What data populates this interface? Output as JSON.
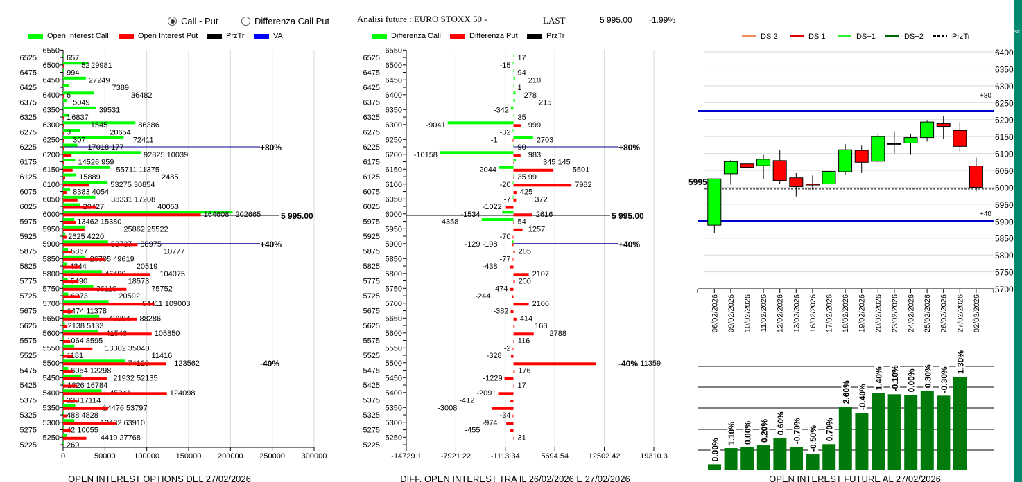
{
  "header": {
    "radio_options": [
      {
        "label": "Call - Put",
        "selected": true
      },
      {
        "label": "Differenza Call Put",
        "selected": false
      }
    ],
    "title": "Analisi future : EURO STOXX 50 -",
    "last_label": "LAST",
    "last_value": "5 995.00",
    "change": "-1.99%",
    "side_tab": "sc"
  },
  "colors": {
    "call": "#00ff00",
    "put": "#ff0000",
    "prztr": "#000000",
    "va": "#0000ff",
    "future_bar": "#007a0a",
    "teal": "#00896f"
  },
  "oi_chart": {
    "title": "OPEN INTEREST OPTIONS DEL 27/02/2026",
    "legend": [
      {
        "label": "Open Interest Call",
        "color": "#00ff00"
      },
      {
        "label": "Open Interest Put",
        "color": "#ff0000"
      },
      {
        "label": "PrzTr",
        "color": "#000000"
      },
      {
        "label": "VA",
        "color": "#0000ff"
      }
    ],
    "x_ticks": [
      "0",
      "50000",
      "100000",
      "150000",
      "200000",
      "250000",
      "300000"
    ],
    "markers": {
      "plus80": "+80%",
      "plus40": "+40%",
      "minus40": "-40%",
      "prztr": "5 995.00"
    }
  },
  "diff_chart": {
    "title": "DIFF. OPEN INTEREST TRA IL 26/02/2026 E 27/02/2026",
    "legend": [
      {
        "label": "Differenza Call",
        "color": "#00ff00"
      },
      {
        "label": "Differenza Put",
        "color": "#ff0000"
      },
      {
        "label": "PrzTr",
        "color": "#000000"
      }
    ],
    "x_ticks": [
      "-14729.1",
      "-7921.22",
      "-1113.34",
      "5694.54",
      "12502.42",
      "19310.3"
    ],
    "markers": {
      "plus80": "+80%",
      "plus40": "+40%",
      "minus40": "-40%",
      "prztr": "5 995.00"
    }
  },
  "price_chart": {
    "legend": [
      {
        "label": "DS 2",
        "color": "#f08c5a",
        "dash": false
      },
      {
        "label": "DS 1",
        "color": "#e00000",
        "dash": false
      },
      {
        "label": "DS+1",
        "color": "#33ee33",
        "dash": false
      },
      {
        "label": "DS+2",
        "color": "#006400",
        "dash": false
      },
      {
        "label": "PrzTr",
        "color": "#000000",
        "dash": true
      }
    ],
    "y_ticks": [
      "6400",
      "6350",
      "6300",
      "6250",
      "6200",
      "6150",
      "6100",
      "6050",
      "6000",
      "5950",
      "5900",
      "5850",
      "5800",
      "5750",
      "5700"
    ],
    "markers": {
      "plus80": "+80",
      "plus40": "+40",
      "prztr": "5995"
    }
  },
  "future_chart": {
    "title": "OPEN INTEREST FUTURE AL 27/02/2026"
  },
  "chart_data": [
    {
      "type": "bar",
      "orientation": "horizontal",
      "title": "OPEN INTEREST OPTIONS DEL 27/02/2026",
      "xlim": [
        0,
        300000
      ],
      "grid": true,
      "legend_placement": "top",
      "strike_ticks": [
        6550,
        6525,
        6500,
        6475,
        6450,
        6425,
        6400,
        6375,
        6350,
        6325,
        6300,
        6275,
        6250,
        6225,
        6200,
        6175,
        6150,
        6125,
        6100,
        6075,
        6050,
        6025,
        6000,
        5975,
        5950,
        5925,
        5900,
        5875,
        5850,
        5825,
        5800,
        5775,
        5750,
        5725,
        5700,
        5675,
        5650,
        5625,
        5600,
        5575,
        5550,
        5525,
        5500,
        5475,
        5450,
        5425,
        5400,
        5375,
        5350,
        5325,
        5300,
        5275,
        5250,
        5225
      ],
      "series_names": [
        "Open Interest Call",
        "Open Interest Put"
      ],
      "rows": [
        [
          6525,
          657,
          null
        ],
        [
          6500,
          29981,
          52
        ],
        [
          6475,
          994,
          null
        ],
        [
          6450,
          27249,
          null
        ],
        [
          6425,
          7389,
          null
        ],
        [
          6400,
          36482,
          6
        ],
        [
          6375,
          5049,
          null
        ],
        [
          6350,
          39531,
          null
        ],
        [
          6325,
          6837,
          1
        ],
        [
          6300,
          86386,
          1545
        ],
        [
          6275,
          20654,
          3
        ],
        [
          6250,
          72411,
          307
        ],
        [
          6225,
          17018,
          177
        ],
        [
          6200,
          92825,
          10039
        ],
        [
          6175,
          14526,
          959
        ],
        [
          6150,
          55711,
          11375
        ],
        [
          6125,
          15889,
          2485
        ],
        [
          6100,
          53275,
          30854
        ],
        [
          6075,
          8383,
          4054
        ],
        [
          6050,
          38331,
          17208
        ],
        [
          6025,
          20427,
          40053
        ],
        [
          6000,
          202665,
          164608
        ],
        [
          5975,
          13462,
          15380
        ],
        [
          5950,
          25862,
          25522
        ],
        [
          5925,
          2625,
          4220
        ],
        [
          5900,
          53737,
          88975
        ],
        [
          5875,
          5867,
          10777
        ],
        [
          5850,
          26705,
          49619
        ],
        [
          5825,
          4344,
          20519
        ],
        [
          5800,
          46480,
          104075
        ],
        [
          5775,
          5490,
          18573
        ],
        [
          5750,
          36119,
          75752
        ],
        [
          5725,
          6073,
          20592
        ],
        [
          5700,
          54411,
          109003
        ],
        [
          5675,
          1474,
          11378
        ],
        [
          5650,
          43294,
          88286
        ],
        [
          5625,
          2138,
          5133
        ],
        [
          5600,
          41546,
          105850
        ],
        [
          5575,
          1064,
          8595
        ],
        [
          5550,
          13302,
          35040
        ],
        [
          5525,
          1181,
          11416
        ],
        [
          5500,
          74120,
          123562
        ],
        [
          5475,
          6054,
          12298
        ],
        [
          5450,
          21932,
          52135
        ],
        [
          5425,
          1826,
          16784
        ],
        [
          5400,
          45941,
          124098
        ],
        [
          5375,
          223,
          17114
        ],
        [
          5350,
          14476,
          53797
        ],
        [
          5325,
          488,
          4828
        ],
        [
          5300,
          13432,
          63910
        ],
        [
          5275,
          42,
          10055
        ],
        [
          5250,
          4419,
          27768
        ],
        [
          5225,
          269,
          null
        ]
      ],
      "levels": {
        "plus80": 6225,
        "prztr": 5995,
        "plus40": 5900,
        "minus40": 5500
      }
    },
    {
      "type": "bar",
      "orientation": "horizontal",
      "title": "DIFF. OPEN INTEREST TRA IL 26/02/2026 E 27/02/2026",
      "xlim": [
        -14729.1,
        19310.3
      ],
      "grid": true,
      "series_names": [
        "Differenza Call",
        "Differenza Put"
      ],
      "rows": [
        [
          6525,
          17,
          null
        ],
        [
          6500,
          -15,
          null
        ],
        [
          6475,
          94,
          null
        ],
        [
          6450,
          210,
          null
        ],
        [
          6425,
          1,
          null
        ],
        [
          6400,
          278,
          null
        ],
        [
          6375,
          215,
          null
        ],
        [
          6350,
          -342,
          null
        ],
        [
          6325,
          35,
          null
        ],
        [
          6300,
          -9041,
          999
        ],
        [
          6275,
          -32,
          null
        ],
        [
          6250,
          2703,
          -1
        ],
        [
          6225,
          90,
          null
        ],
        [
          6200,
          -10158,
          983
        ],
        [
          6175,
          345,
          145
        ],
        [
          6150,
          -2044,
          5501
        ],
        [
          6125,
          35,
          99
        ],
        [
          6100,
          -20,
          7982
        ],
        [
          6075,
          null,
          425
        ],
        [
          6050,
          -7,
          372
        ],
        [
          6025,
          null,
          -1022
        ],
        [
          6000,
          -1534,
          2616
        ],
        [
          5975,
          -4358,
          54
        ],
        [
          5950,
          null,
          1257
        ],
        [
          5925,
          null,
          -70
        ],
        [
          5900,
          -198,
          -129
        ],
        [
          5875,
          null,
          205
        ],
        [
          5850,
          null,
          -77
        ],
        [
          5825,
          null,
          -438
        ],
        [
          5800,
          null,
          2107
        ],
        [
          5775,
          null,
          200
        ],
        [
          5750,
          null,
          -474
        ],
        [
          5725,
          null,
          -244
        ],
        [
          5700,
          null,
          2106
        ],
        [
          5675,
          null,
          -382
        ],
        [
          5650,
          null,
          414
        ],
        [
          5625,
          null,
          163
        ],
        [
          5600,
          null,
          2788
        ],
        [
          5575,
          null,
          116
        ],
        [
          5550,
          null,
          -2
        ],
        [
          5525,
          null,
          -328
        ],
        [
          5500,
          null,
          11359
        ],
        [
          5475,
          null,
          176
        ],
        [
          5450,
          null,
          -1229
        ],
        [
          5425,
          null,
          17
        ],
        [
          5400,
          null,
          -2091
        ],
        [
          5375,
          null,
          -412
        ],
        [
          5350,
          null,
          -3008
        ],
        [
          5325,
          null,
          -34
        ],
        [
          5300,
          null,
          -974
        ],
        [
          5275,
          null,
          -455
        ],
        [
          5250,
          null,
          31
        ]
      ],
      "levels": {
        "plus80": 6225,
        "prztr": 5995,
        "plus40": 5900,
        "minus40": 5500
      }
    },
    {
      "type": "candlestick",
      "ylim": [
        5700,
        6400
      ],
      "grid": true,
      "legend_placement": "top",
      "candles": [
        {
          "date": "06/02/2026",
          "open": 5888,
          "high": 6026,
          "low": 5864,
          "close": 6025
        },
        {
          "date": "09/02/2026",
          "open": 6040,
          "high": 6081,
          "low": 6008,
          "close": 6076
        },
        {
          "date": "10/02/2026",
          "open": 6069,
          "high": 6094,
          "low": 6053,
          "close": 6059
        },
        {
          "date": "11/02/2026",
          "open": 6064,
          "high": 6096,
          "low": 6024,
          "close": 6083
        },
        {
          "date": "12/02/2026",
          "open": 6079,
          "high": 6111,
          "low": 6009,
          "close": 6020
        },
        {
          "date": "13/02/2026",
          "open": 6028,
          "high": 6042,
          "low": 5973,
          "close": 6002
        },
        {
          "date": "16/02/2026",
          "open": 6010,
          "high": 6035,
          "low": 5993,
          "close": 6007
        },
        {
          "date": "17/02/2026",
          "open": 6010,
          "high": 6055,
          "low": 5968,
          "close": 6047
        },
        {
          "date": "18/02/2026",
          "open": 6046,
          "high": 6128,
          "low": 6036,
          "close": 6111
        },
        {
          "date": "19/02/2026",
          "open": 6109,
          "high": 6123,
          "low": 6042,
          "close": 6074
        },
        {
          "date": "20/02/2026",
          "open": 6077,
          "high": 6160,
          "low": 6073,
          "close": 6150
        },
        {
          "date": "23/02/2026",
          "open": 6128,
          "high": 6166,
          "low": 6100,
          "close": 6128
        },
        {
          "date": "24/02/2026",
          "open": 6131,
          "high": 6158,
          "low": 6096,
          "close": 6147
        },
        {
          "date": "25/02/2026",
          "open": 6147,
          "high": 6197,
          "low": 6135,
          "close": 6193
        },
        {
          "date": "26/02/2026",
          "open": 6188,
          "high": 6211,
          "low": 6144,
          "close": 6180
        },
        {
          "date": "27/02/2026",
          "open": 6168,
          "high": 6193,
          "low": 6106,
          "close": 6121
        },
        {
          "date": "02/03/2026",
          "open": 6063,
          "high": 6088,
          "low": 5988,
          "close": 6000
        }
      ],
      "levels": {
        "plus80": 6225,
        "prztr": 5995,
        "plus40": 5900
      }
    },
    {
      "type": "bar",
      "title": "OPEN INTEREST FUTURE AL 27/02/2026",
      "values_relative_percent_of_max": [
        5.7,
        23.1,
        23.9,
        26.1,
        34.1,
        24.4,
        16.4,
        27.4,
        67.7,
        61.0,
        82.6,
        81.1,
        80.3,
        84.8,
        79.6,
        100
      ],
      "labels": [
        "0.00%",
        "1.10%",
        "0.00%",
        "0.20%",
        "0.60%",
        "-0.70%",
        "-0.50%",
        "0.70%",
        "2.60%",
        "-0.40%",
        "1.40%",
        "-0.10%",
        "0.00%",
        "0.30%",
        "-0.30%",
        "1.30%"
      ],
      "grid": true
    }
  ]
}
